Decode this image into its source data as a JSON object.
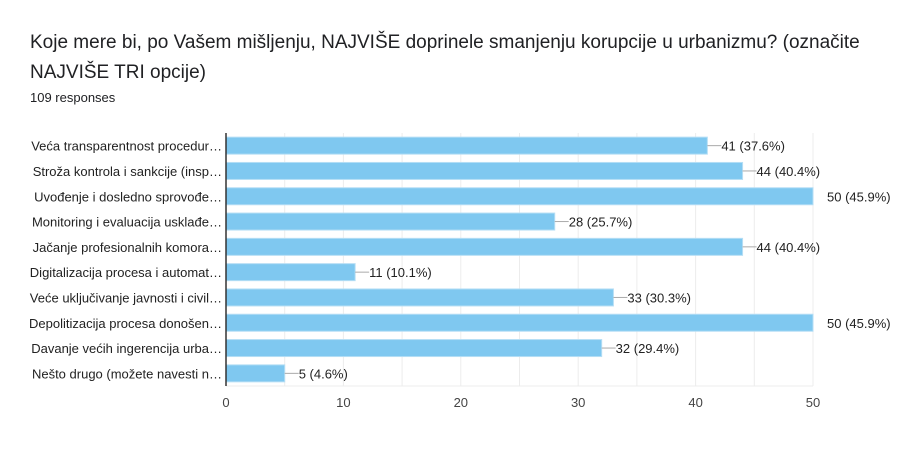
{
  "header": {
    "title": "Koje mere bi, po Vašem mišljenju, NAJVIŠE doprinele smanjenju korupcije u urbanizmu?   (označite NAJVIŠE TRI opcije)",
    "responses": "109 responses"
  },
  "colors": {
    "bar": "#7fc8f0",
    "bar_edge": "#b5def5",
    "axis": "#333333",
    "grid": "#ececec",
    "leader": "#aaaaaa"
  },
  "chart_data": {
    "type": "bar",
    "orientation": "horizontal",
    "title": "Koje mere bi, po Vašem mišljenju, NAJVIŠE doprinele smanjenju korupcije u urbanizmu?   (označite NAJVIŠE TRI opcije)",
    "xlabel": "",
    "ylabel": "",
    "xlim": [
      0,
      50
    ],
    "grid": true,
    "xticks": [
      0,
      10,
      20,
      30,
      40,
      50
    ],
    "xtick_labels": [
      "0",
      "10",
      "20",
      "30",
      "40",
      "50"
    ],
    "categories": [
      "Veća transparentnost procedur…",
      "Stroža kontrola i sankcije (insp…",
      "Uvođenje i dosledno sprovođe…",
      "Monitoring i evaluacija usklađe…",
      "Jačanje profesionalnih komora…",
      "Digitalizacija procesa i automat…",
      "Veće uključivanje javnosti i civil…",
      "Depolitizacija procesa donošen…",
      "Davanje većih ingerencija urba…",
      "Nešto drugo (možete navesti n…"
    ],
    "values": [
      41,
      44,
      50,
      28,
      44,
      11,
      33,
      50,
      32,
      5
    ],
    "data_labels": [
      "41 (37.6%)",
      "44 (40.4%)",
      "50 (45.9%)",
      "28 (25.7%)",
      "44 (40.4%)",
      "11 (10.1%)",
      "33 (30.3%)",
      "50 (45.9%)",
      "32 (29.4%)",
      "5 (4.6%)"
    ]
  }
}
